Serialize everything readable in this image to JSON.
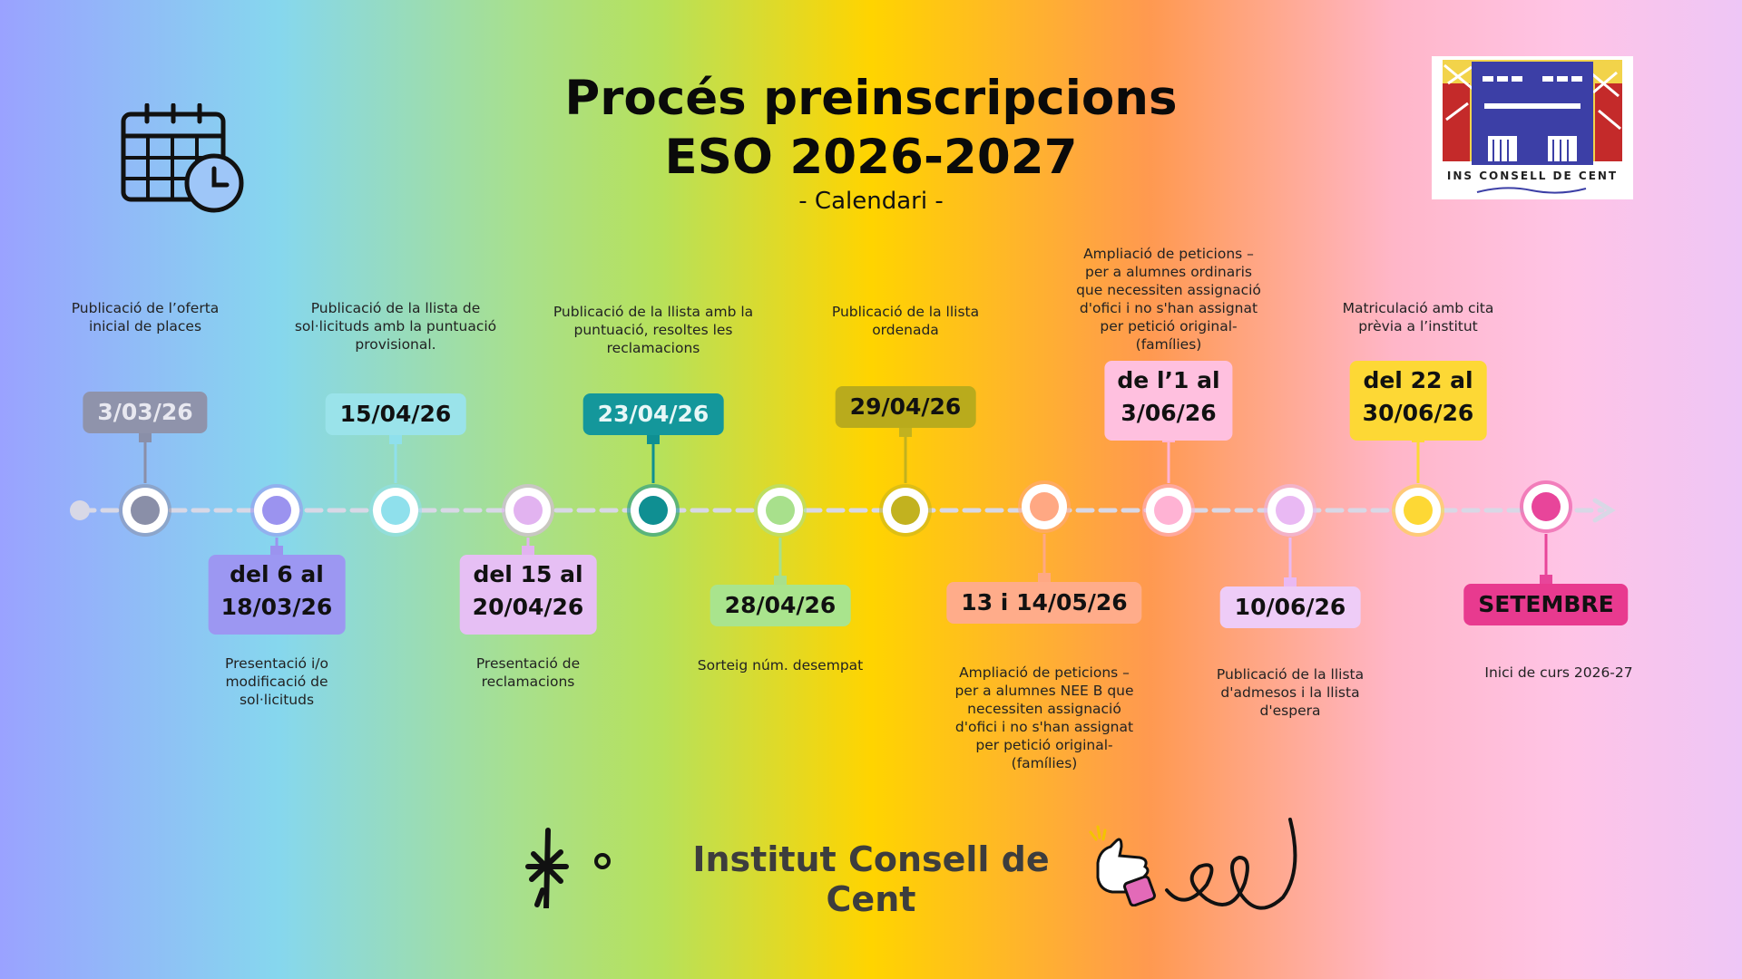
{
  "header": {
    "title_line1": "Procés preinscripcions",
    "title_line2": "ESO 2026-2027",
    "subtitle": "- Calendari -"
  },
  "logo": {
    "text": "INS CONSELL DE CENT"
  },
  "icons": {
    "calendar": "calendar-clock-icon",
    "thumb": "thumbs-up-icon",
    "star": "sparkle-icon",
    "squiggle": "squiggle-icon"
  },
  "line_color": "#d8d8e6",
  "milestones": [
    {
      "date": "3/03/26",
      "desc": "Publicació de l’oferta inicial de places",
      "position": "above",
      "color": "#8a8fa8",
      "badge_bg": "#8f93ab",
      "badge_text_color": "#e8e8f0"
    },
    {
      "date": "del 6 al 18/03/26",
      "desc": "Presentació i/o modificació de sol·licituds",
      "position": "below",
      "color": "#9b93ef",
      "badge_bg": "#9c97f2",
      "badge_text_color": "#111111"
    },
    {
      "date": "15/04/26",
      "desc": "Publicació de la llista de sol·licituds amb la puntuació provisional.",
      "position": "above",
      "color": "#8fe0ec",
      "badge_bg": "#9ae3ea",
      "badge_text_color": "#111111"
    },
    {
      "date": "del 15 al 20/04/26",
      "desc": "Presentació de reclamacions",
      "position": "below",
      "color": "#e2b3f0",
      "badge_bg": "#e6bff4",
      "badge_text_color": "#111111"
    },
    {
      "date": "23/04/26",
      "desc": "Publicació de la llista amb la puntuació, resoltes les reclamacions",
      "position": "above",
      "color": "#0f8f92",
      "badge_bg": "#14979b",
      "badge_text_color": "#e8f7f7"
    },
    {
      "date": "28/04/26",
      "desc": "Sorteig núm. desempat",
      "position": "below",
      "color": "#a8e08c",
      "badge_bg": "#a9e48d",
      "badge_text_color": "#111111"
    },
    {
      "date": "29/04/26",
      "desc": "Publicació de la llista ordenada",
      "position": "above",
      "color": "#c2b21f",
      "badge_bg": "#b9ab1c",
      "badge_text_color": "#111111"
    },
    {
      "date": "13 i 14/05/26",
      "desc": "Ampliació de peticions – per a alumnes NEE B que necessiten assignació d'ofici i no s'han assignat per petició original- (famílies)",
      "position": "below",
      "color": "#ffa883",
      "badge_bg": "#ffac8a",
      "badge_text_color": "#111111"
    },
    {
      "date": "de l’1 al 3/06/26",
      "desc": "Ampliació de peticions – per a alumnes ordinaris que necessiten assignació d'ofici i no s'han assignat per petició original- (famílies)",
      "position": "above",
      "color": "#ffb3d4",
      "badge_bg": "#ffc0df",
      "badge_text_color": "#111111"
    },
    {
      "date": "10/06/26",
      "desc": "Publicació de la llista d'admesos i la llista d'espera",
      "position": "below",
      "color": "#e9b9f3",
      "badge_bg": "#eeccf7",
      "badge_text_color": "#111111"
    },
    {
      "date": "del 22 al 30/06/26",
      "desc": "Matriculació amb cita prèvia a l’institut",
      "position": "above",
      "color": "#fdd835",
      "badge_bg": "#fdd835",
      "badge_text_color": "#111111"
    },
    {
      "date": "SETEMBRE",
      "desc": "Inici de curs 2026-27",
      "position": "below",
      "color": "#e8459a",
      "badge_bg": "#e83a8f",
      "badge_text_color": "#111111"
    }
  ],
  "footer": {
    "text": "Institut Consell de Cent"
  }
}
